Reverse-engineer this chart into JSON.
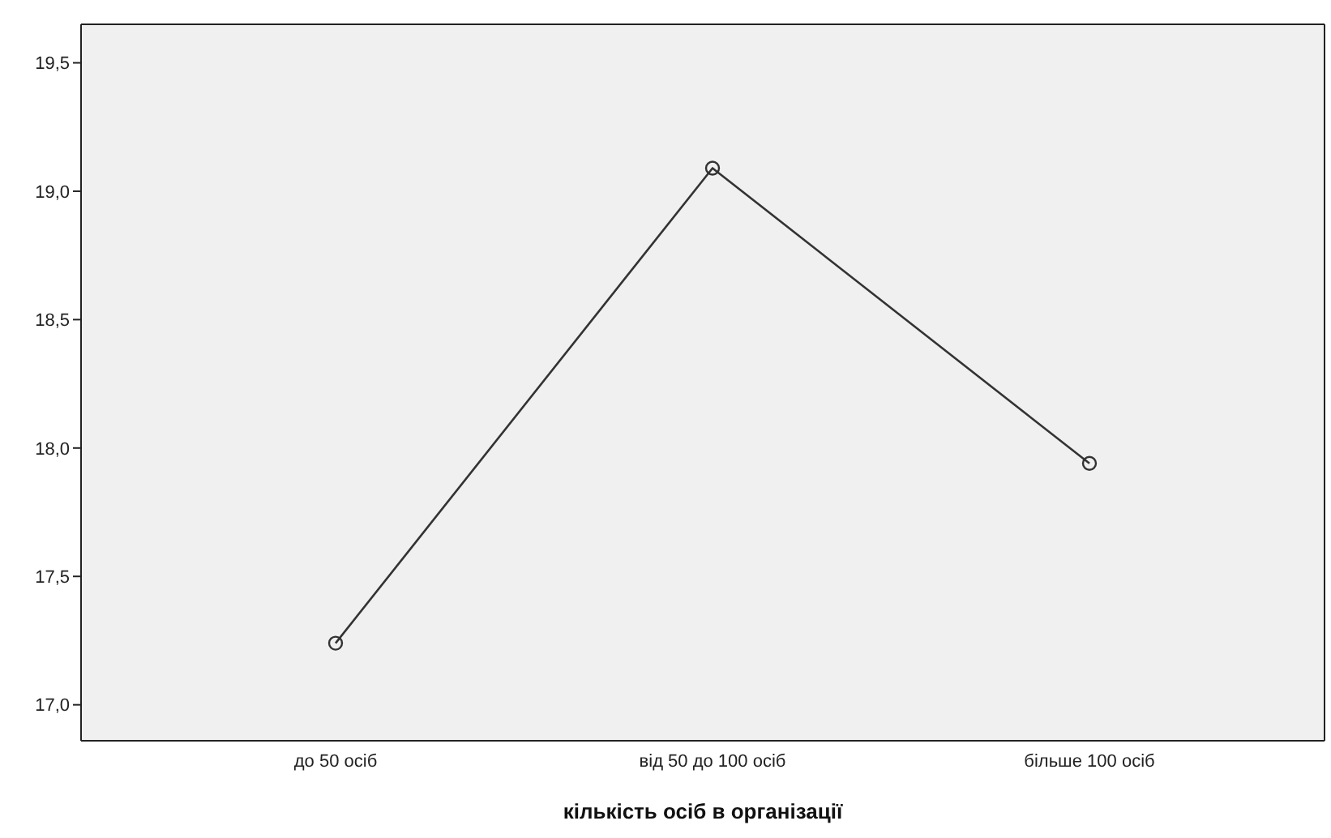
{
  "chart_data": {
    "type": "line",
    "xlabel": "кількість осіб в організації",
    "categories": [
      "до 50 осіб",
      "від 50 до 100 осіб",
      "більше 100 осіб"
    ],
    "series": [
      {
        "color": "#333333",
        "values": [
          17.24,
          19.09,
          17.94
        ]
      }
    ],
    "ylim": [
      16.86,
      19.65
    ],
    "yticks": [
      {
        "value": 17,
        "label": "17,0"
      },
      {
        "value": 17.5,
        "label": "17,5"
      },
      {
        "value": 18,
        "label": "18,0"
      },
      {
        "value": 18.5,
        "label": "18,5"
      },
      {
        "value": 19,
        "label": "19,0"
      },
      {
        "value": 19.5,
        "label": "19,5"
      }
    ],
    "marker": "circle",
    "line_style": "solid"
  }
}
